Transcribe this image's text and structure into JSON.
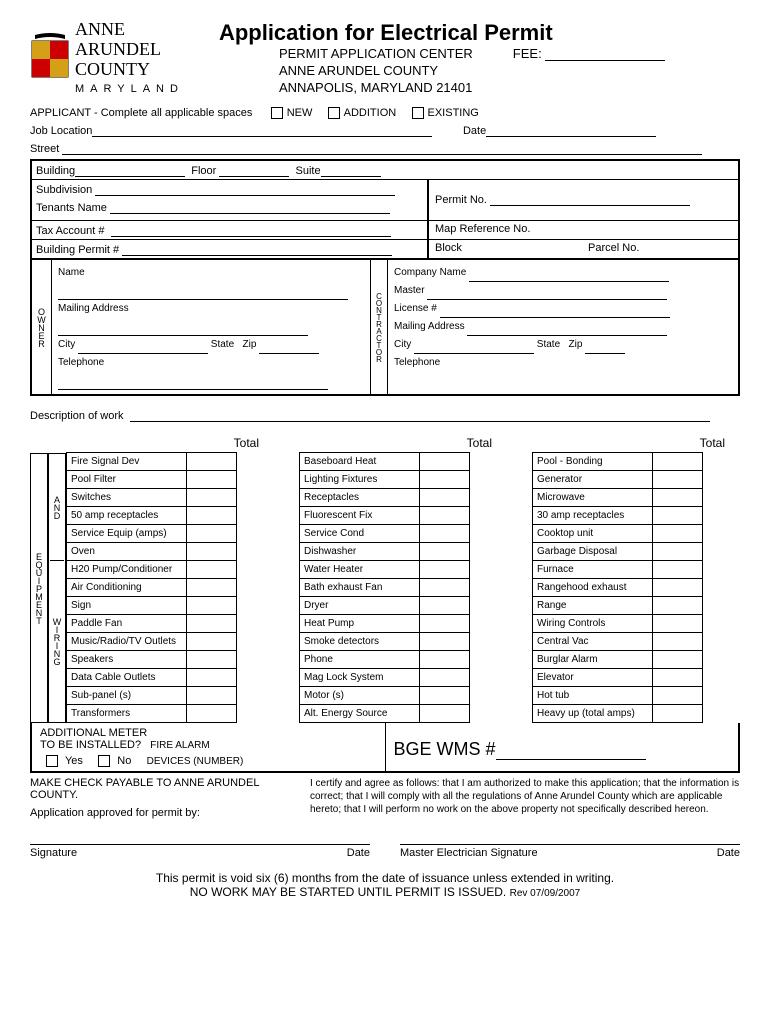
{
  "header": {
    "county_line1": "ANNE",
    "county_line2": "ARUNDEL",
    "county_line3": "COUNTY",
    "state": "MARYLAND",
    "title": "Application for Electrical Permit",
    "center_line1": "PERMIT APPLICATION CENTER",
    "center_line2": "ANNE ARUNDEL COUNTY",
    "center_line3": "ANNAPOLIS, MARYLAND 21401",
    "fee_label": "FEE:"
  },
  "applicant": {
    "instruction": "APPLICANT - Complete all applicable spaces",
    "opt_new": "NEW",
    "opt_addition": "ADDITION",
    "opt_existing": "EXISTING",
    "job_location": "Job Location",
    "date": "Date",
    "street": "Street",
    "building": "Building",
    "floor": "Floor",
    "suite": "Suite",
    "subdivision": "Subdivision",
    "tenants_name": "Tenants Name",
    "tax_account": "Tax Account #",
    "building_permit": "Building Permit #",
    "permit_no": "Permit No.",
    "map_ref": "Map Reference No.",
    "block": "Block",
    "parcel": "Parcel No."
  },
  "owner": {
    "label": "OWNER",
    "name": "Name",
    "mailing": "Mailing Address",
    "city": "City",
    "state": "State",
    "zip": "Zip",
    "telephone": "Telephone"
  },
  "contractor": {
    "label": "CONTRACTOR",
    "company": "Company Name",
    "master": "Master",
    "license": "License #",
    "mailing": "Mailing Address",
    "city": "City",
    "state": "State",
    "zip": "Zip",
    "telephone": "Telephone"
  },
  "description_label": "Description of work",
  "equipment": {
    "label1": "EQUIPMENT",
    "label2": "AND",
    "label3": "WIRING",
    "total_header": "Total",
    "col1": [
      "Fire Signal Dev",
      "Pool Filter",
      "Switches",
      "50 amp receptacles",
      "Service Equip (amps)",
      "Oven",
      "H20 Pump/Conditioner",
      "Air Conditioning",
      "Sign",
      "Paddle Fan",
      "Music/Radio/TV Outlets",
      "Speakers",
      "Data Cable Outlets",
      "Sub-panel (s)",
      "Transformers"
    ],
    "col2": [
      "Baseboard Heat",
      "Lighting Fixtures",
      "Receptacles",
      "Fluorescent Fix",
      "Service Cond",
      "Dishwasher",
      "Water Heater",
      "Bath exhaust Fan",
      "Dryer",
      "Heat Pump",
      "Smoke detectors",
      "Phone",
      "Mag Lock System",
      "Motor (s)",
      "Alt. Energy Source"
    ],
    "col3": [
      "Pool - Bonding",
      "Generator",
      "Microwave",
      "30 amp receptacles",
      "Cooktop unit",
      "Garbage Disposal",
      "Furnace",
      "Rangehood exhaust",
      "Range",
      "Wiring Controls",
      "Central Vac",
      "Burglar Alarm",
      "Elevator",
      "Hot tub",
      "Heavy up (total amps)"
    ]
  },
  "meter": {
    "line1": "ADDITIONAL METER",
    "line2": "TO BE INSTALLED?",
    "fire_alarm": "FIRE ALARM",
    "yes": "Yes",
    "no": "No",
    "devices": "DEVICES (NUMBER)",
    "bge": "BGE WMS #"
  },
  "bottom": {
    "payable": "MAKE CHECK PAYABLE TO ANNE ARUNDEL COUNTY.",
    "approved": "Application approved for permit by:",
    "certify": "I certify and agree as follows: that I am authorized to make this application; that the information is correct; that I will comply with all the regulations of Anne Arundel County which are applicable hereto; that I will perform no work on the above property not specifically described hereon."
  },
  "signatures": {
    "sig": "Signature",
    "date": "Date",
    "master_sig": "Master Electrician Signature"
  },
  "footer": {
    "line1": "This permit is void six (6) months from the date of issuance unless extended in writing.",
    "line2": "NO WORK MAY BE STARTED UNTIL PERMIT IS ISSUED.",
    "rev": "Rev 07/09/2007"
  }
}
